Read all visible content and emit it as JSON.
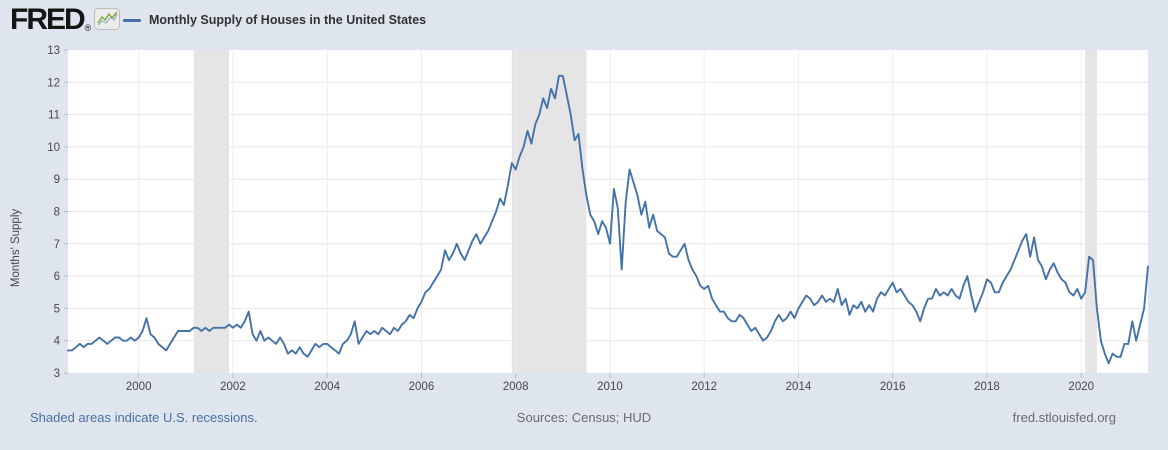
{
  "header": {
    "logo_text": "FRED",
    "logo_registered": "®",
    "legend_label": "Monthly Supply of Houses in the United States"
  },
  "footer": {
    "recession_note": "Shaded areas indicate U.S. recessions.",
    "sources": "Sources: Census; HUD",
    "site": "fred.stlouisfed.org"
  },
  "colors": {
    "background": "#dee5ee",
    "plot_background": "#ffffff",
    "line": "#4572a7",
    "recession_band": "#e5e5e5",
    "gridline": "#e8e8e8",
    "vertical_gridline": "#ededed",
    "tick_mark": "#b3bdca",
    "link": "#4a6fa5",
    "tick_label": "#484848"
  },
  "icons": {
    "logo_sparkline": "sparkline-icon"
  },
  "chart_data": {
    "type": "line",
    "title": "Monthly Supply of Houses in the United States",
    "ylabel": "Months' Supply",
    "xlabel": "",
    "ylim": [
      3,
      13
    ],
    "yticks": [
      3,
      4,
      5,
      6,
      7,
      8,
      9,
      10,
      11,
      12,
      13
    ],
    "xticks": [
      2000,
      2002,
      2004,
      2006,
      2008,
      2010,
      2012,
      2014,
      2016,
      2018,
      2020
    ],
    "x_range_years": [
      1998.5,
      2021.417
    ],
    "grid": true,
    "legend_position": "top",
    "frequency": "monthly",
    "start": "1998-07",
    "end": "2021-06",
    "line_color": "#4572a7",
    "recession_color": "#e5e5e5",
    "recessions": [
      {
        "start": 2001.167,
        "end": 2001.917
      },
      {
        "start": 2007.917,
        "end": 2009.5
      },
      {
        "start": 2020.083,
        "end": 2020.333
      }
    ],
    "values": [
      3.7,
      3.7,
      3.8,
      3.9,
      3.8,
      3.9,
      3.9,
      4.0,
      4.1,
      4.0,
      3.9,
      4.0,
      4.1,
      4.1,
      4.0,
      4.0,
      4.1,
      4.0,
      4.1,
      4.3,
      4.7,
      4.2,
      4.1,
      3.9,
      3.8,
      3.7,
      3.9,
      4.1,
      4.3,
      4.3,
      4.3,
      4.3,
      4.4,
      4.4,
      4.3,
      4.4,
      4.3,
      4.4,
      4.4,
      4.4,
      4.4,
      4.5,
      4.4,
      4.5,
      4.4,
      4.6,
      4.9,
      4.2,
      4.0,
      4.3,
      4.0,
      4.1,
      4.0,
      3.9,
      4.1,
      3.9,
      3.6,
      3.7,
      3.6,
      3.8,
      3.6,
      3.5,
      3.7,
      3.9,
      3.8,
      3.9,
      3.9,
      3.8,
      3.7,
      3.6,
      3.9,
      4.0,
      4.2,
      4.6,
      3.9,
      4.1,
      4.3,
      4.2,
      4.3,
      4.2,
      4.4,
      4.3,
      4.2,
      4.4,
      4.3,
      4.5,
      4.6,
      4.8,
      4.7,
      5.0,
      5.2,
      5.5,
      5.6,
      5.8,
      6.0,
      6.2,
      6.8,
      6.5,
      6.7,
      7.0,
      6.7,
      6.5,
      6.8,
      7.1,
      7.3,
      7.0,
      7.2,
      7.4,
      7.7,
      8.0,
      8.4,
      8.2,
      8.8,
      9.5,
      9.3,
      9.7,
      10.0,
      10.5,
      10.1,
      10.7,
      11.0,
      11.5,
      11.2,
      11.8,
      11.5,
      12.2,
      12.2,
      11.6,
      11.0,
      10.2,
      10.4,
      9.3,
      8.5,
      7.9,
      7.7,
      7.3,
      7.7,
      7.5,
      7.0,
      8.7,
      8.1,
      6.2,
      8.3,
      9.3,
      8.9,
      8.5,
      7.9,
      8.3,
      7.5,
      7.9,
      7.4,
      7.3,
      7.2,
      6.7,
      6.6,
      6.6,
      6.8,
      7.0,
      6.5,
      6.2,
      6.0,
      5.7,
      5.6,
      5.7,
      5.3,
      5.1,
      4.9,
      4.9,
      4.7,
      4.6,
      4.6,
      4.8,
      4.7,
      4.5,
      4.3,
      4.4,
      4.2,
      4.0,
      4.1,
      4.3,
      4.6,
      4.8,
      4.6,
      4.7,
      4.9,
      4.7,
      5.0,
      5.2,
      5.4,
      5.3,
      5.1,
      5.2,
      5.4,
      5.2,
      5.3,
      5.2,
      5.6,
      5.1,
      5.3,
      4.8,
      5.1,
      5.0,
      5.2,
      4.9,
      5.1,
      4.9,
      5.3,
      5.5,
      5.4,
      5.6,
      5.8,
      5.5,
      5.6,
      5.4,
      5.2,
      5.1,
      4.9,
      4.6,
      5.0,
      5.3,
      5.3,
      5.6,
      5.4,
      5.5,
      5.4,
      5.6,
      5.4,
      5.3,
      5.7,
      6.0,
      5.4,
      4.9,
      5.2,
      5.5,
      5.9,
      5.8,
      5.5,
      5.5,
      5.8,
      6.0,
      6.2,
      6.5,
      6.8,
      7.1,
      7.3,
      6.6,
      7.2,
      6.5,
      6.3,
      5.9,
      6.2,
      6.4,
      6.1,
      5.9,
      5.8,
      5.5,
      5.4,
      5.6,
      5.3,
      5.5,
      6.6,
      6.5,
      5.0,
      4.0,
      3.6,
      3.3,
      3.6,
      3.5,
      3.5,
      3.9,
      3.9,
      4.6,
      4.0,
      4.5,
      5.0,
      6.3
    ]
  }
}
